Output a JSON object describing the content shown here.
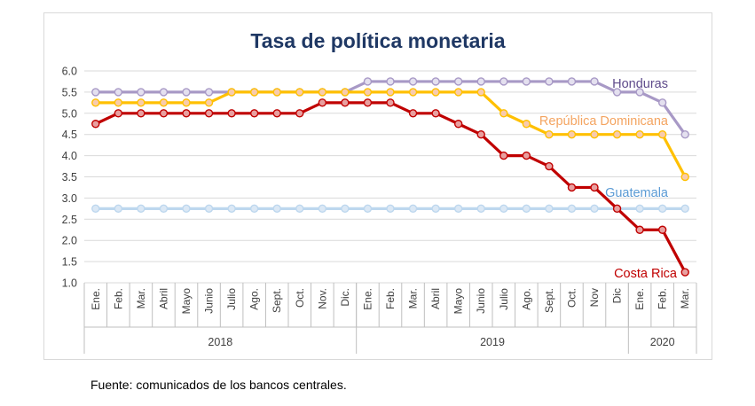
{
  "chart_data": {
    "type": "line",
    "title": "Tasa de política monetaria",
    "xlabel": "",
    "ylabel": "",
    "ylim": [
      1.0,
      6.0
    ],
    "yticks": [
      "6.0",
      "5.5",
      "5.0",
      "4.5",
      "4.0",
      "3.5",
      "3.0",
      "2.5",
      "2.0",
      "1.5",
      "1.0"
    ],
    "grid": "horizontal",
    "categories": [
      "Ene.",
      "Feb.",
      "Mar.",
      "Abril",
      "Mayo",
      "Junio",
      "Julio",
      "Ago.",
      "Sept.",
      "Oct.",
      "Nov.",
      "Dic.",
      "Ene.",
      "Feb.",
      "Mar.",
      "Abril",
      "Mayo",
      "Junio",
      "Julio",
      "Ago.",
      "Sept.",
      "Oct.",
      "Nov",
      "Dic",
      "Ene.",
      "Feb.",
      "Mar."
    ],
    "year_groups": [
      {
        "label": "2018",
        "count": 12
      },
      {
        "label": "2019",
        "count": 12
      },
      {
        "label": "2020",
        "count": 3
      }
    ],
    "series": [
      {
        "name": "Honduras",
        "color": "#a899c6",
        "marker_fill": "#e4e0ef",
        "label_color": "#5f4b8b",
        "values": [
          5.5,
          5.5,
          5.5,
          5.5,
          5.5,
          5.5,
          5.5,
          5.5,
          5.5,
          5.5,
          5.5,
          5.5,
          5.75,
          5.75,
          5.75,
          5.75,
          5.75,
          5.75,
          5.75,
          5.75,
          5.75,
          5.75,
          5.75,
          5.5,
          5.5,
          5.25,
          4.5
        ]
      },
      {
        "name": "República Dominicana",
        "color": "#ffc000",
        "marker_fill": "#f8cbad",
        "label_color": "#f4a460",
        "values": [
          5.25,
          5.25,
          5.25,
          5.25,
          5.25,
          5.25,
          5.5,
          5.5,
          5.5,
          5.5,
          5.5,
          5.5,
          5.5,
          5.5,
          5.5,
          5.5,
          5.5,
          5.5,
          5.0,
          4.75,
          4.5,
          4.5,
          4.5,
          4.5,
          4.5,
          4.5,
          3.5
        ]
      },
      {
        "name": "Guatemala",
        "color": "#bdd7ee",
        "marker_fill": "#dbe8f5",
        "label_color": "#5b9bd5",
        "values": [
          2.75,
          2.75,
          2.75,
          2.75,
          2.75,
          2.75,
          2.75,
          2.75,
          2.75,
          2.75,
          2.75,
          2.75,
          2.75,
          2.75,
          2.75,
          2.75,
          2.75,
          2.75,
          2.75,
          2.75,
          2.75,
          2.75,
          2.75,
          2.75,
          2.75,
          2.75,
          2.75
        ]
      },
      {
        "name": "Costa Rica",
        "color": "#c00000",
        "marker_fill": "#e8a0a0",
        "label_color": "#c00000",
        "values": [
          4.75,
          5.0,
          5.0,
          5.0,
          5.0,
          5.0,
          5.0,
          5.0,
          5.0,
          5.0,
          5.25,
          5.25,
          5.25,
          5.25,
          5.0,
          5.0,
          4.75,
          4.5,
          4.0,
          4.0,
          3.75,
          3.25,
          3.25,
          2.75,
          2.25,
          2.25,
          1.25
        ]
      }
    ]
  },
  "source_note": "Fuente: comunicados de los bancos centrales."
}
